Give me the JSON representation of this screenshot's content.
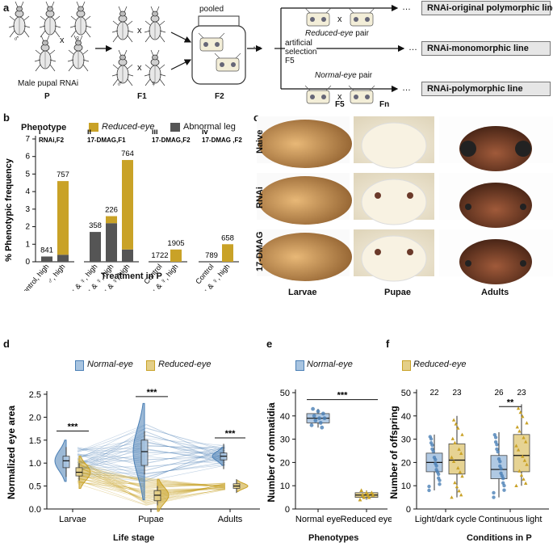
{
  "colors": {
    "normal": "#4a7fb5",
    "normal_light": "#a8c4e0",
    "reduced": "#c9a227",
    "reduced_light": "#e4cf88",
    "abnormal": "#555555",
    "arrow": "#111111"
  },
  "panel_a": {
    "label": "a",
    "jar_label": "pooled",
    "generations": [
      "P",
      "F1",
      "F2",
      "F5",
      "Fn"
    ],
    "male_rnai": "Male pupal RNAi",
    "selection": [
      "artificial",
      "selection",
      "F5"
    ],
    "reduced_pair_word": "Reduced-eye",
    "reduced_pair_suffix": " pair",
    "normal_pair_word": "Normal-eye",
    "normal_pair_suffix": " pair",
    "lines": [
      "RNAi-original polymorphic line",
      "RNAi-monomorphic line",
      "RNAi-polymorphic line"
    ],
    "cross": "x",
    "male": "♂",
    "female": "♀",
    "dots": "…"
  },
  "panel_b": {
    "label": "b",
    "phenotype_title": "Phenotype",
    "legend": [
      "Reduced-eye",
      "Abnormal leg"
    ],
    "ylabel": "% Phenotypic frequency",
    "xlabel": "Treatment in P",
    "subpanels": [
      {
        "roman": "i",
        "title": "RNAi,F2"
      },
      {
        "roman": "ii",
        "title": "17-DMAG,F1"
      },
      {
        "roman": "iii",
        "title": "17-DMAG,F2"
      },
      {
        "roman": "iv",
        "title": "17-DMAG ,F2"
      }
    ],
    "yticks": [
      "0",
      "1",
      "2",
      "3",
      "4",
      "5",
      "6",
      "7"
    ]
  },
  "panel_c": {
    "label": "c",
    "rows": [
      "Naive",
      "RNAi",
      "17-DMAG"
    ],
    "cols": [
      "Larvae",
      "Pupae",
      "Adults"
    ]
  },
  "panel_d": {
    "label": "d",
    "legend": [
      "Normal-eye",
      "Reduced-eye"
    ],
    "ylabel": "Normalized eye area",
    "xlabel": "Life stage",
    "categories": [
      "Larvae",
      "Pupae",
      "Adults"
    ],
    "yticks": [
      "0.0",
      "0.5",
      "1.0",
      "1.5",
      "2.0",
      "2.5"
    ],
    "sig": [
      "***",
      "***",
      "***"
    ]
  },
  "panel_e": {
    "label": "e",
    "legend": [
      "Normal-eye"
    ],
    "ylabel": "Number of ommatidia",
    "xlabel": "Phenotypes",
    "categories": [
      "Normal eye",
      "Reduced eye"
    ],
    "yticks": [
      "0",
      "10",
      "20",
      "30",
      "40",
      "50"
    ],
    "sig": "***"
  },
  "panel_f": {
    "label": "f",
    "legend": [
      "Reduced-eye"
    ],
    "ylabel": "Number of offspring",
    "xlabel": "Conditions in P",
    "categories": [
      "Light/dark cycle",
      "Continuous light"
    ],
    "yticks": [
      "0",
      "10",
      "20",
      "30",
      "40",
      "50"
    ],
    "counts": [
      "22",
      "23",
      "26",
      "23"
    ],
    "sig": "**"
  },
  "chart_data": [
    {
      "type": "bar",
      "panel": "b",
      "ylabel": "% Phenotypic frequency",
      "xlabel": "Treatment in P",
      "ylim": [
        0,
        7
      ],
      "categories": [
        "Control, high",
        "♂, high",
        "♂ & ♀, high",
        "♂ & ♀, high",
        "♂ & ♀, high",
        "Control",
        "♂ & ♀, high",
        "Control",
        "♂ & ♀, high"
      ],
      "n": [
        "841",
        "757",
        "358",
        "226",
        "764",
        "1722",
        "1905",
        "789",
        "658"
      ],
      "series": [
        {
          "name": "Abnormal leg",
          "values": [
            0.3,
            0.4,
            1.7,
            2.2,
            0.7,
            0,
            0,
            0,
            0
          ]
        },
        {
          "name": "Reduced-eye",
          "values": [
            0,
            4.2,
            0,
            0.4,
            5.1,
            0,
            0.7,
            0,
            1.0
          ]
        }
      ]
    },
    {
      "type": "scatter",
      "panel": "d",
      "ylabel": "Normalized eye area",
      "xlabel": "Life stage",
      "categories": [
        "Larvae",
        "Pupae",
        "Adults"
      ],
      "ylim": [
        0,
        2.5
      ],
      "series": [
        {
          "name": "Normal-eye",
          "median": [
            1.05,
            1.25,
            1.15
          ],
          "q1": [
            0.9,
            0.95,
            1.07
          ],
          "q3": [
            1.15,
            1.5,
            1.22
          ]
        },
        {
          "name": "Reduced-eye",
          "median": [
            0.8,
            0.3,
            0.5
          ],
          "q1": [
            0.72,
            0.18,
            0.45
          ],
          "q3": [
            0.9,
            0.4,
            0.55
          ]
        }
      ]
    },
    {
      "type": "scatter",
      "panel": "e",
      "ylabel": "Number of ommatidia",
      "xlabel": "Phenotypes",
      "categories": [
        "Normal eye",
        "Reduced eye"
      ],
      "ylim": [
        0,
        50
      ],
      "median": [
        39,
        6
      ],
      "q1": [
        37,
        5
      ],
      "q3": [
        41,
        7
      ],
      "points": [
        [
          36,
          37,
          38,
          39,
          39,
          40,
          41,
          42,
          43,
          35
        ],
        [
          4,
          5,
          5,
          6,
          6,
          6,
          7,
          7,
          8
        ]
      ]
    },
    {
      "type": "scatter",
      "panel": "f",
      "ylabel": "Number of offspring",
      "xlabel": "Conditions in P",
      "categories": [
        "Light/dark cycle",
        "Continuous light"
      ],
      "ylim": [
        0,
        50
      ],
      "series": [
        {
          "name": "Normal-eye",
          "median": [
            20,
            17
          ],
          "q1": [
            16,
            13
          ],
          "q3": [
            24,
            23
          ],
          "whisker": [
            [
              8,
              32
            ],
            [
              5,
              33
            ]
          ]
        },
        {
          "name": "Reduced-eye",
          "median": [
            21,
            23
          ],
          "q1": [
            15,
            16
          ],
          "q3": [
            28,
            32
          ],
          "whisker": [
            [
              5,
              40
            ],
            [
              10,
              45
            ]
          ]
        }
      ]
    }
  ]
}
